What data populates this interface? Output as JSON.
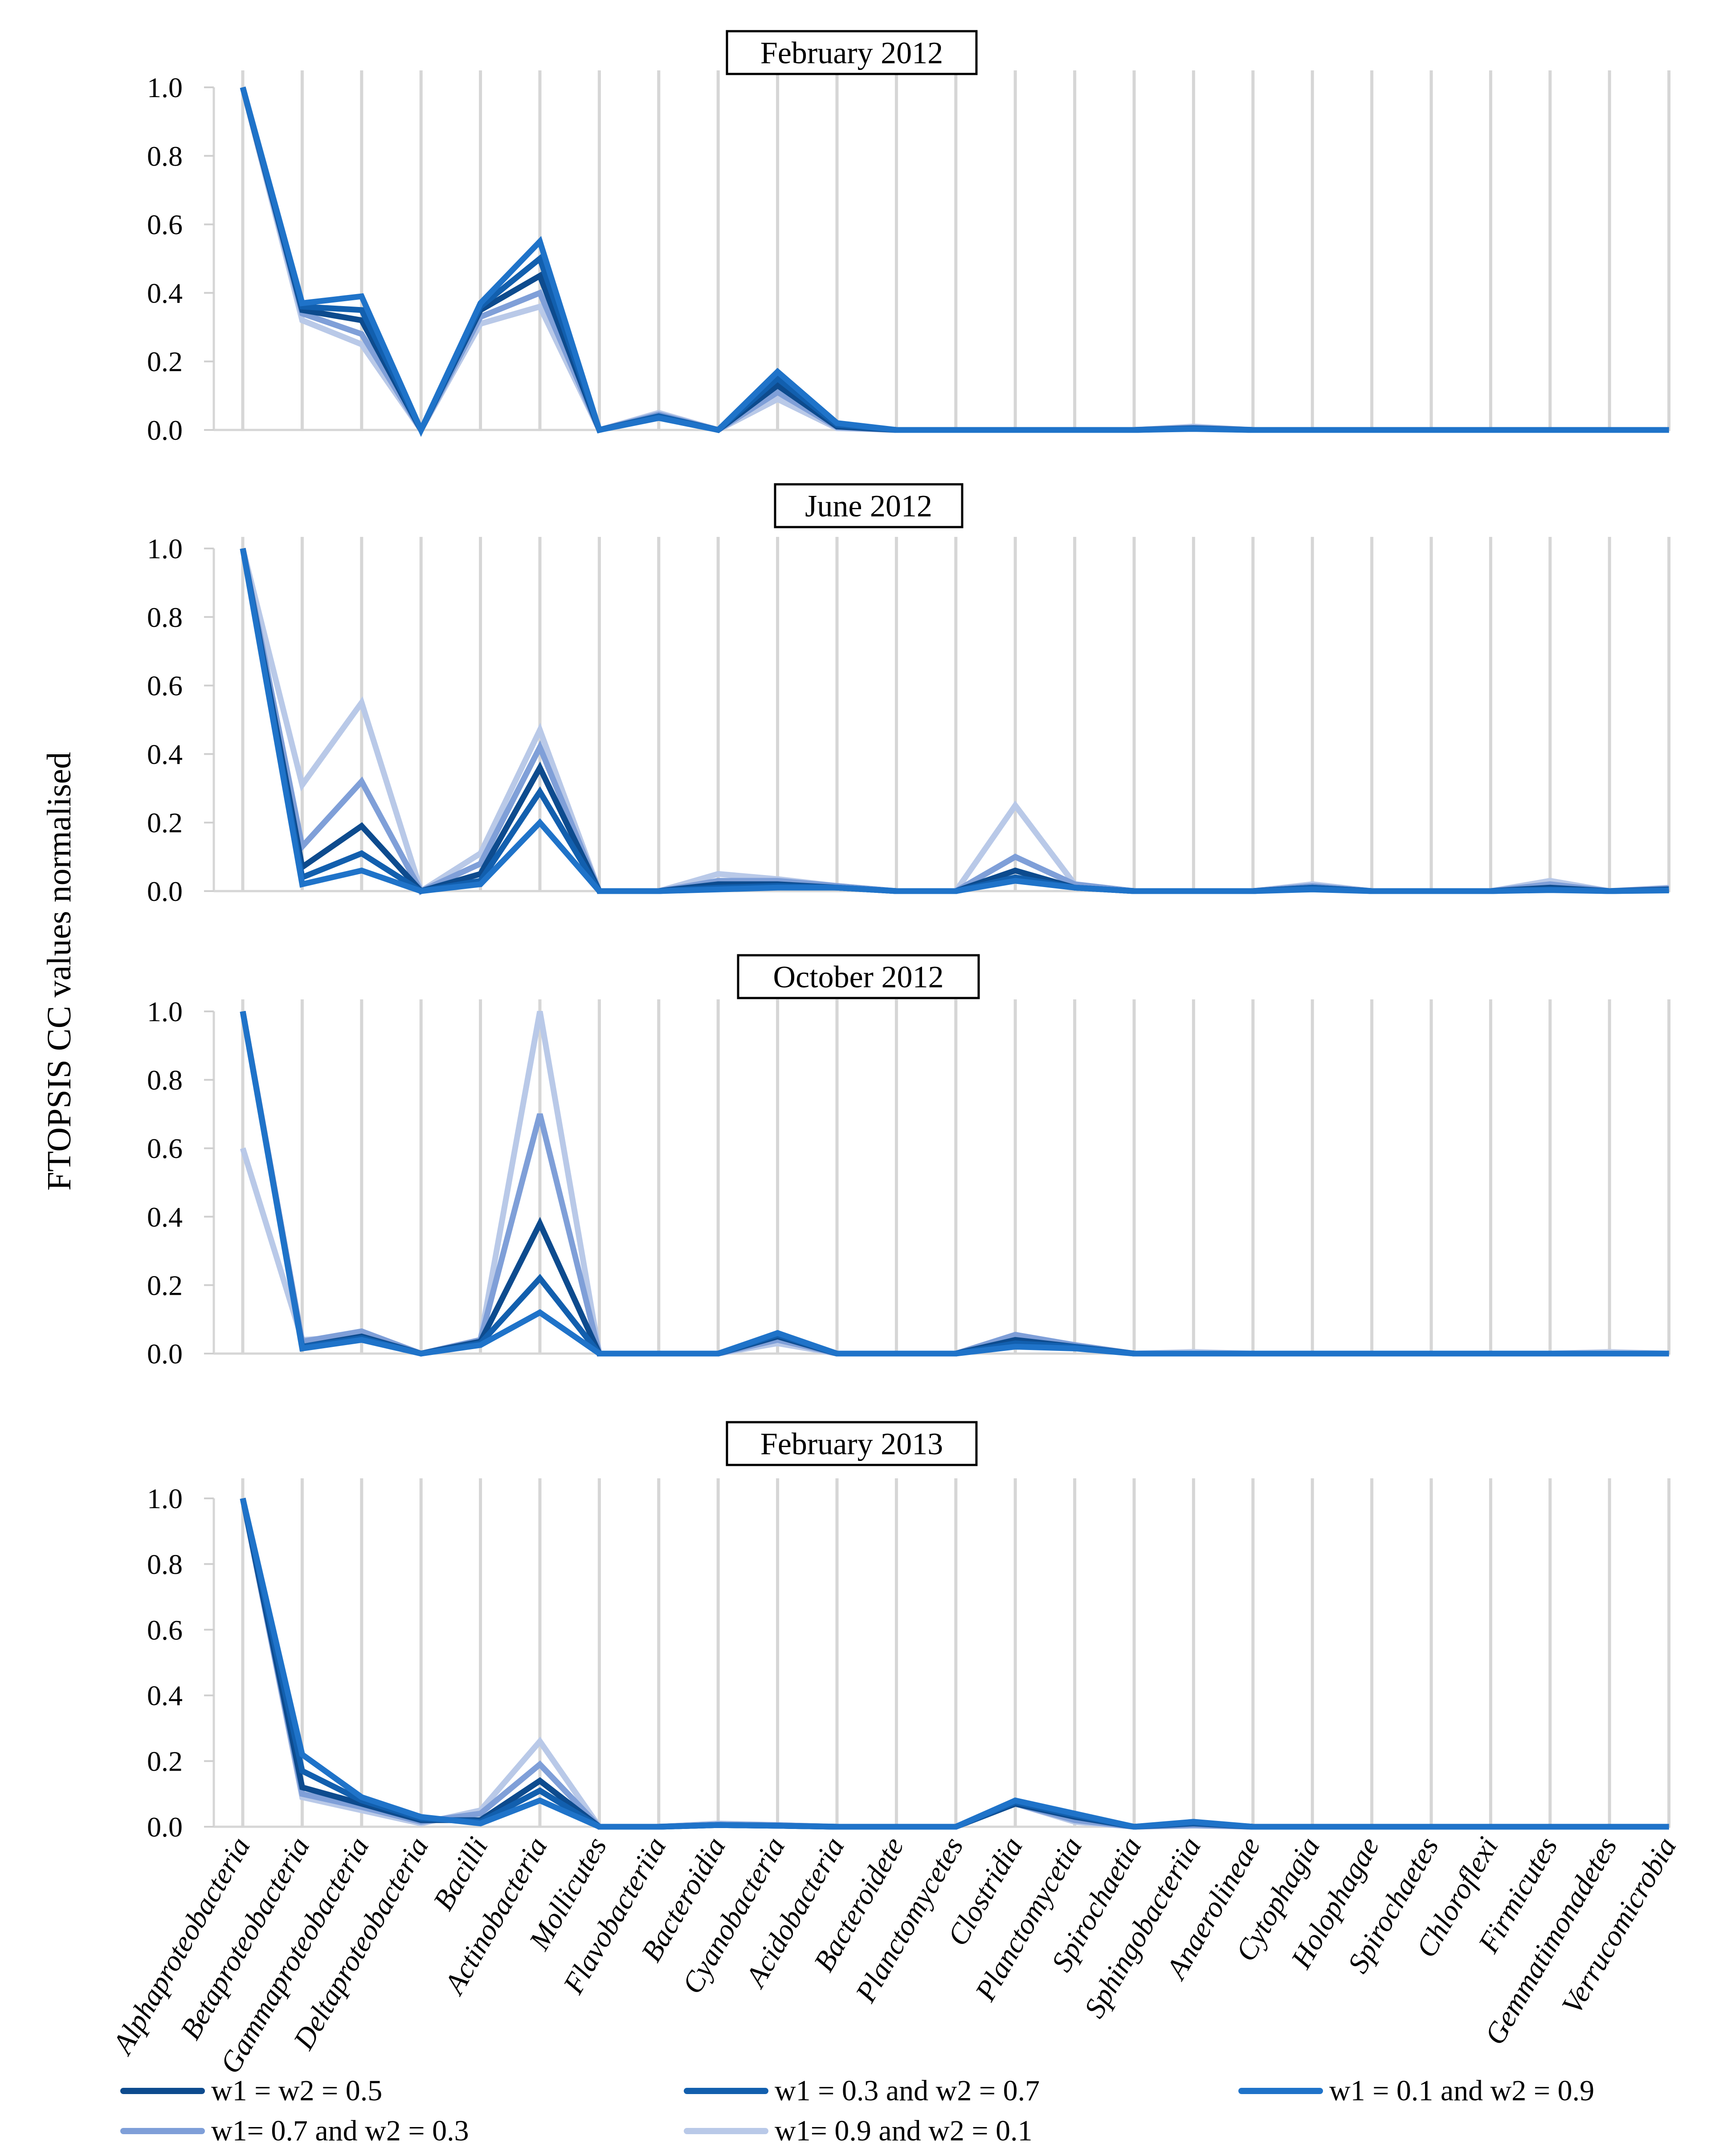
{
  "y_axis_label": "FTOPSIS CC values normalised",
  "legend": [
    {
      "label": "w1 = w2 = 0.5",
      "color": "#0d4b8e"
    },
    {
      "label": "w1 = 0.3 and w2 = 0.7",
      "color": "#125fae"
    },
    {
      "label": "w1 = 0.1 and w2 = 0.9",
      "color": "#1f73c9"
    },
    {
      "label": "w1=  0.7 and w2 = 0.3",
      "color": "#7f9fd8"
    },
    {
      "label": "w1= 0.9 and w2 = 0.1",
      "color": "#b9c9e8"
    }
  ],
  "chart_data": [
    {
      "type": "line",
      "title": "February 2012",
      "ylabel": "FTOPSIS CC values normalised",
      "ylim": [
        0,
        1
      ],
      "yticks": [
        "0.0",
        "0.2",
        "0.4",
        "0.6",
        "0.8",
        "1.0"
      ],
      "categories": [
        "Alphaproteobacteria",
        "Betaproteobacteria",
        "Gammaproteobacteria",
        "Deltaproteobacteria",
        "Bacilli",
        "Actinobacteria",
        "Mollicutes",
        "Flavobacteriia",
        "Bacteroidia",
        "Cyanobacteria",
        "Acidobacteria",
        "Bacteroidete",
        "Planctomycetes",
        "Clostridia",
        "Planctomycetia",
        "Spirochaetia",
        "Sphingobacteriia",
        "Anaerolineae",
        "Cytophagia",
        "Holophagae",
        "Spirochaetes",
        "Chloroflexi",
        "Firmicutes",
        "Gemmatimonadetes",
        "Verrucomicrobia"
      ],
      "series": [
        {
          "name": "w1 = w2 = 0.5",
          "values": [
            1.0,
            0.35,
            0.32,
            0.0,
            0.35,
            0.45,
            0.0,
            0.04,
            0.0,
            0.13,
            0.01,
            0.0,
            0.0,
            0.0,
            0.0,
            0.0,
            0.005,
            0.0,
            0.0,
            0.0,
            0.0,
            0.0,
            0.0,
            0.0,
            0.0
          ]
        },
        {
          "name": "w1 = 0.3 and w2 = 0.7",
          "values": [
            1.0,
            0.36,
            0.35,
            0.0,
            0.36,
            0.5,
            0.0,
            0.04,
            0.0,
            0.15,
            0.015,
            0.0,
            0.0,
            0.0,
            0.0,
            0.0,
            0.004,
            0.0,
            0.0,
            0.0,
            0.0,
            0.0,
            0.0,
            0.0,
            0.0
          ]
        },
        {
          "name": "w1 = 0.1 and w2 = 0.9",
          "values": [
            1.0,
            0.37,
            0.39,
            0.0,
            0.37,
            0.55,
            0.0,
            0.035,
            0.0,
            0.17,
            0.02,
            0.0,
            0.0,
            0.0,
            0.0,
            0.0,
            0.003,
            0.0,
            0.0,
            0.0,
            0.0,
            0.0,
            0.0,
            0.0,
            0.0
          ]
        },
        {
          "name": "w1=  0.7 and w2 = 0.3",
          "values": [
            1.0,
            0.34,
            0.28,
            0.0,
            0.33,
            0.4,
            0.0,
            0.045,
            0.0,
            0.11,
            0.008,
            0.0,
            0.0,
            0.0,
            0.0,
            0.0,
            0.007,
            0.0,
            0.0,
            0.0,
            0.0,
            0.0,
            0.0,
            0.0,
            0.0
          ]
        },
        {
          "name": "w1= 0.9 and w2 = 0.1",
          "values": [
            1.0,
            0.32,
            0.25,
            0.0,
            0.31,
            0.36,
            0.0,
            0.05,
            0.0,
            0.09,
            0.005,
            0.0,
            0.0,
            0.0,
            0.0,
            0.0,
            0.01,
            0.0,
            0.0,
            0.0,
            0.0,
            0.0,
            0.0,
            0.0,
            0.0
          ]
        }
      ]
    },
    {
      "type": "line",
      "title": "June 2012",
      "ylabel": "FTOPSIS CC values normalised",
      "ylim": [
        0,
        1
      ],
      "yticks": [
        "0.0",
        "0.2",
        "0.4",
        "0.6",
        "0.8",
        "1.0"
      ],
      "categories": [
        "Alphaproteobacteria",
        "Betaproteobacteria",
        "Gammaproteobacteria",
        "Deltaproteobacteria",
        "Bacilli",
        "Actinobacteria",
        "Mollicutes",
        "Flavobacteriia",
        "Bacteroidia",
        "Cyanobacteria",
        "Acidobacteria",
        "Bacteroidete",
        "Planctomycetes",
        "Clostridia",
        "Planctomycetia",
        "Spirochaetia",
        "Sphingobacteriia",
        "Anaerolineae",
        "Cytophagia",
        "Holophagae",
        "Spirochaetes",
        "Chloroflexi",
        "Firmicutes",
        "Gemmatimonadetes",
        "Verrucomicrobia"
      ],
      "series": [
        {
          "name": "w1 = w2 = 0.5",
          "values": [
            1.0,
            0.07,
            0.19,
            0.0,
            0.05,
            0.36,
            0.0,
            0.0,
            0.02,
            0.02,
            0.01,
            0.0,
            0.0,
            0.06,
            0.01,
            0.0,
            0.0,
            0.0,
            0.01,
            0.0,
            0.0,
            0.0,
            0.01,
            0.0,
            0.005
          ]
        },
        {
          "name": "w1 = 0.3 and w2 = 0.7",
          "values": [
            1.0,
            0.04,
            0.11,
            0.0,
            0.03,
            0.29,
            0.0,
            0.0,
            0.01,
            0.015,
            0.01,
            0.0,
            0.0,
            0.04,
            0.01,
            0.0,
            0.0,
            0.0,
            0.01,
            0.0,
            0.0,
            0.0,
            0.005,
            0.0,
            0.003
          ]
        },
        {
          "name": "w1 = 0.1 and w2 = 0.9",
          "values": [
            1.0,
            0.02,
            0.06,
            0.0,
            0.02,
            0.2,
            0.0,
            0.0,
            0.005,
            0.01,
            0.01,
            0.0,
            0.0,
            0.03,
            0.01,
            0.0,
            0.0,
            0.0,
            0.005,
            0.0,
            0.0,
            0.0,
            0.003,
            0.0,
            0.002
          ]
        },
        {
          "name": "w1=  0.7 and w2 = 0.3",
          "values": [
            1.0,
            0.13,
            0.32,
            0.0,
            0.08,
            0.42,
            0.0,
            0.0,
            0.03,
            0.03,
            0.015,
            0.0,
            0.0,
            0.1,
            0.02,
            0.0,
            0.0,
            0.0,
            0.015,
            0.0,
            0.0,
            0.0,
            0.02,
            0.0,
            0.008
          ]
        },
        {
          "name": "w1= 0.9 and w2 = 0.1",
          "values": [
            1.0,
            0.31,
            0.55,
            0.0,
            0.11,
            0.47,
            0.0,
            0.0,
            0.05,
            0.035,
            0.015,
            0.0,
            0.0,
            0.25,
            0.02,
            0.0,
            0.0,
            0.0,
            0.02,
            0.0,
            0.0,
            0.0,
            0.03,
            0.0,
            0.01
          ]
        }
      ]
    },
    {
      "type": "line",
      "title": "October 2012",
      "ylabel": "FTOPSIS CC values normalised",
      "ylim": [
        0,
        1
      ],
      "yticks": [
        "0.0",
        "0.2",
        "0.4",
        "0.6",
        "0.8",
        "1.0"
      ],
      "categories": [
        "Alphaproteobacteria",
        "Betaproteobacteria",
        "Gammaproteobacteria",
        "Deltaproteobacteria",
        "Bacilli",
        "Actinobacteria",
        "Mollicutes",
        "Flavobacteriia",
        "Bacteroidia",
        "Cyanobacteria",
        "Acidobacteria",
        "Bacteroidete",
        "Planctomycetes",
        "Clostridia",
        "Planctomycetia",
        "Spirochaetia",
        "Sphingobacteriia",
        "Anaerolineae",
        "Cytophagia",
        "Holophagae",
        "Spirochaetes",
        "Chloroflexi",
        "Firmicutes",
        "Gemmatimonadetes",
        "Verrucomicrobia"
      ],
      "series": [
        {
          "name": "w1 = w2 = 0.5",
          "values": [
            1.0,
            0.02,
            0.05,
            0.0,
            0.035,
            0.38,
            0.0,
            0.0,
            0.0,
            0.05,
            0.0,
            0.0,
            0.0,
            0.04,
            0.02,
            0.0,
            0.0,
            0.0,
            0.0,
            0.0,
            0.0,
            0.0,
            0.0,
            0.0,
            0.0
          ]
        },
        {
          "name": "w1 = 0.3 and w2 = 0.7",
          "values": [
            1.0,
            0.02,
            0.045,
            0.0,
            0.03,
            0.22,
            0.0,
            0.0,
            0.0,
            0.055,
            0.0,
            0.0,
            0.0,
            0.03,
            0.02,
            0.0,
            0.0,
            0.0,
            0.0,
            0.0,
            0.0,
            0.0,
            0.0,
            0.0,
            0.0
          ]
        },
        {
          "name": "w1 = 0.1 and w2 = 0.9",
          "values": [
            1.0,
            0.015,
            0.04,
            0.0,
            0.025,
            0.12,
            0.0,
            0.0,
            0.0,
            0.06,
            0.0,
            0.0,
            0.0,
            0.02,
            0.015,
            0.0,
            0.0,
            0.0,
            0.0,
            0.0,
            0.0,
            0.0,
            0.0,
            0.0,
            0.0
          ]
        },
        {
          "name": "w1=  0.7 and w2 = 0.3",
          "values": [
            1.0,
            0.035,
            0.065,
            0.0,
            0.04,
            0.7,
            0.0,
            0.0,
            0.0,
            0.04,
            0.0,
            0.0,
            0.0,
            0.055,
            0.025,
            0.0,
            0.0,
            0.0,
            0.0,
            0.0,
            0.0,
            0.0,
            0.0,
            0.0,
            0.0
          ]
        },
        {
          "name": "w1= 0.9 and w2 = 0.1",
          "values": [
            0.6,
            0.04,
            0.05,
            0.0,
            0.04,
            1.0,
            0.0,
            0.0,
            0.0,
            0.03,
            0.0,
            0.0,
            0.0,
            0.04,
            0.025,
            0.0,
            0.005,
            0.0,
            0.0,
            0.0,
            0.0,
            0.0,
            0.0,
            0.005,
            0.0
          ]
        }
      ]
    },
    {
      "type": "line",
      "title": "February 2013",
      "ylabel": "FTOPSIS CC values normalised",
      "ylim": [
        0,
        1
      ],
      "yticks": [
        "0.0",
        "0.2",
        "0.4",
        "0.6",
        "0.8",
        "1.0"
      ],
      "categories": [
        "Alphaproteobacteria",
        "Betaproteobacteria",
        "Gammaproteobacteria",
        "Deltaproteobacteria",
        "Bacilli",
        "Actinobacteria",
        "Mollicutes",
        "Flavobacteriia",
        "Bacteroidia",
        "Cyanobacteria",
        "Acidobacteria",
        "Bacteroidete",
        "Planctomycetes",
        "Clostridia",
        "Planctomycetia",
        "Spirochaetia",
        "Sphingobacteriia",
        "Anaerolineae",
        "Cytophagia",
        "Holophagae",
        "Spirochaetes",
        "Chloroflexi",
        "Firmicutes",
        "Gemmatimonadetes",
        "Verrucomicrobia"
      ],
      "series": [
        {
          "name": "w1 = w2 = 0.5",
          "values": [
            1.0,
            0.12,
            0.07,
            0.02,
            0.02,
            0.14,
            0.0,
            0.0,
            0.005,
            0.003,
            0.0,
            0.0,
            0.0,
            0.07,
            0.03,
            0.0,
            0.01,
            0.0,
            0.0,
            0.0,
            0.0,
            0.0,
            0.0,
            0.0,
            0.0
          ]
        },
        {
          "name": "w1 = 0.3 and w2 = 0.7",
          "values": [
            1.0,
            0.17,
            0.08,
            0.025,
            0.015,
            0.11,
            0.0,
            0.0,
            0.005,
            0.003,
            0.0,
            0.0,
            0.0,
            0.075,
            0.035,
            0.0,
            0.012,
            0.0,
            0.0,
            0.0,
            0.0,
            0.0,
            0.0,
            0.0,
            0.0
          ]
        },
        {
          "name": "w1 = 0.1 and w2 = 0.9",
          "values": [
            1.0,
            0.22,
            0.09,
            0.03,
            0.01,
            0.08,
            0.0,
            0.0,
            0.005,
            0.003,
            0.0,
            0.0,
            0.0,
            0.08,
            0.04,
            0.0,
            0.015,
            0.0,
            0.0,
            0.0,
            0.0,
            0.0,
            0.0,
            0.0,
            0.0
          ]
        },
        {
          "name": "w1=  0.7 and w2 = 0.3",
          "values": [
            1.0,
            0.1,
            0.06,
            0.015,
            0.04,
            0.19,
            0.0,
            0.0,
            0.007,
            0.005,
            0.0,
            0.0,
            0.0,
            0.07,
            0.02,
            0.0,
            0.005,
            0.0,
            0.0,
            0.0,
            0.0,
            0.0,
            0.0,
            0.0,
            0.0
          ]
        },
        {
          "name": "w1= 0.9 and w2 = 0.1",
          "values": [
            1.0,
            0.09,
            0.05,
            0.01,
            0.05,
            0.26,
            0.0,
            0.0,
            0.01,
            0.005,
            0.0,
            0.0,
            0.0,
            0.07,
            0.015,
            0.0,
            0.003,
            0.0,
            0.0,
            0.0,
            0.0,
            0.0,
            0.0,
            0.0,
            0.0
          ]
        }
      ]
    }
  ]
}
